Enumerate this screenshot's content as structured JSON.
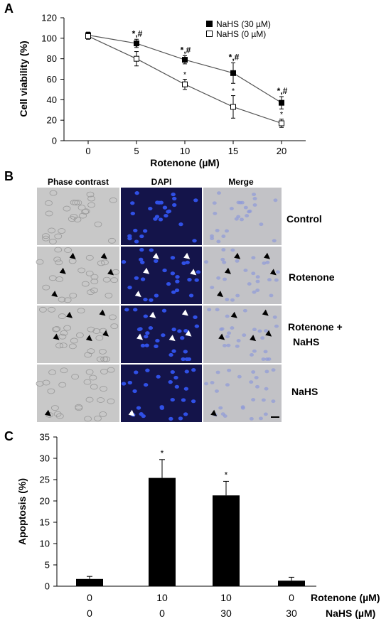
{
  "panel_a": {
    "letter": "A",
    "legend": [
      "NaHS (30 µM)",
      "NaHS (0 µM)"
    ]
  },
  "panel_b": {
    "letter": "B",
    "columns": [
      "Phase contrast",
      "DAPI",
      "Merge"
    ],
    "rows": [
      "Control",
      "Rotenone",
      "Rotenone +",
      "NaHS",
      "NaHS"
    ]
  },
  "panel_c": {
    "letter": "C",
    "row_labels": [
      "Rotenone (µM)",
      "NaHS (µM)"
    ],
    "rotenone_values": [
      "0",
      "10",
      "10",
      "0"
    ],
    "nahs_values": [
      "0",
      "0",
      "30",
      "30"
    ]
  },
  "colors": {
    "bar": "#000000",
    "line": "#555555",
    "dapi_bg": "#14144a",
    "phase_bg": "#c8c8c8",
    "merge_bg": "#c2c2c6",
    "nuclei": "#3050e6"
  },
  "chart_data": [
    {
      "type": "line",
      "x": [
        0,
        5,
        10,
        15,
        20
      ],
      "series": [
        {
          "name": "NaHS (30 µM)",
          "values": [
            103,
            95,
            79,
            66,
            37
          ],
          "errors": [
            3,
            4,
            4,
            10,
            6
          ],
          "annotations": [
            "",
            "*,#",
            "*,#",
            "*,#",
            "*,#"
          ],
          "marker": "filled-square"
        },
        {
          "name": "NaHS (0 µM)",
          "values": [
            102,
            80,
            55,
            33,
            17
          ],
          "errors": [
            3,
            7,
            5,
            11,
            4
          ],
          "annotations": [
            "",
            "*",
            "*",
            "*",
            "*"
          ],
          "marker": "open-square"
        }
      ],
      "xlabel": "Rotenone (µM)",
      "ylabel": "Cell viability (%)",
      "xticks": [
        "0",
        "5",
        "10",
        "15",
        "20"
      ],
      "yticks": [
        "0",
        "20",
        "40",
        "60",
        "80",
        "100",
        "120"
      ],
      "xlim": [
        -2.5,
        22.5
      ],
      "ylim": [
        0,
        120
      ],
      "grid": false,
      "legend": "top-right"
    },
    {
      "type": "bar",
      "categories": [
        "0 / 0",
        "10 / 0",
        "10 / 30",
        "0 / 30"
      ],
      "values": [
        1.7,
        25.4,
        21.3,
        1.3
      ],
      "errors": [
        0.6,
        4.3,
        3.3,
        0.8
      ],
      "annotations": [
        "",
        "*",
        "*",
        ""
      ],
      "ylabel": "Apoptosis (%)",
      "yticks": [
        "0",
        "5",
        "10",
        "15",
        "20",
        "25",
        "30",
        "35"
      ],
      "ylim": [
        0,
        35
      ],
      "grid": false
    }
  ]
}
